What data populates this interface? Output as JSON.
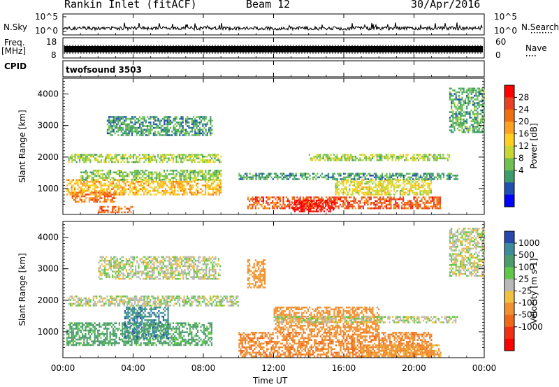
{
  "header": {
    "station": "Rankin Inlet (fitACF)",
    "beam": "Beam 12",
    "date": "30/Apr/2016"
  },
  "noise_panel": {
    "left_label": "N.Sky",
    "right_label": "N.Search",
    "left_ticks": [
      "10^5",
      "10^0"
    ],
    "right_ticks": [
      "10^5",
      "10^0"
    ]
  },
  "freq_panel": {
    "left_label_line1": "Freq.",
    "left_label_line2": "[MHz]",
    "right_label": "Nave",
    "left_ticks": [
      "18",
      "8"
    ],
    "right_ticks": [
      "60",
      "0"
    ]
  },
  "cpid_panel": {
    "label": "CPID",
    "value": "twofsound 3503"
  },
  "power_panel": {
    "ylabel": "Slant Range [km]",
    "yticks": [
      "4000",
      "3000",
      "2000",
      "1000"
    ],
    "colorbar_label": "Power [dB]",
    "colorbar_ticks": [
      "28",
      "24",
      "20",
      "16",
      "12",
      "8",
      "4"
    ],
    "colorbar_colors": [
      "#ff0000",
      "#e84020",
      "#f07010",
      "#ffa020",
      "#ffd020",
      "#c8d830",
      "#70c050",
      "#3c9c6c",
      "#2050b0",
      "#0000ff"
    ]
  },
  "velocity_panel": {
    "ylabel": "Slant Range [km]",
    "yticks": [
      "4000",
      "3000",
      "2000",
      "1000"
    ],
    "colorbar_label": "Velocity [m s-1]",
    "colorbar_ticks": [
      "1000",
      "500",
      "100",
      "25",
      "-25",
      "-100",
      "-500",
      "-1000"
    ],
    "colorbar_colors": [
      "#2848b0",
      "#3c8c9c",
      "#4c9c6c",
      "#60c848",
      "#b8b8b8",
      "#f0c040",
      "#f09030",
      "#f06818",
      "#f03010",
      "#ff0000"
    ]
  },
  "xaxis": {
    "label": "Time UT",
    "ticks": [
      "00:00",
      "04:00",
      "08:00",
      "12:00",
      "16:00",
      "20:00",
      "00:00"
    ]
  },
  "chart_data": [
    {
      "type": "heatmap",
      "title": "Power",
      "xlabel": "Time UT",
      "ylabel": "Slant Range [km]",
      "xlim": [
        0,
        24
      ],
      "ylim": [
        180,
        4500
      ],
      "clim": [
        0,
        30
      ],
      "units": "dB",
      "regions": [
        {
          "t": [
            0.2,
            9.0
          ],
          "r": [
            800,
            1300
          ],
          "value": 18
        },
        {
          "t": [
            0.5,
            3.0
          ],
          "r": [
            600,
            900
          ],
          "value": 22
        },
        {
          "t": [
            2.0,
            4.0
          ],
          "r": [
            250,
            450
          ],
          "value": 24
        },
        {
          "t": [
            1.0,
            9.0
          ],
          "r": [
            1300,
            1600
          ],
          "value": 11
        },
        {
          "t": [
            0.3,
            9.0
          ],
          "r": [
            1850,
            2100
          ],
          "value": 12
        },
        {
          "t": [
            10.5,
            21.5
          ],
          "r": [
            350,
            750
          ],
          "value": 24
        },
        {
          "t": [
            13.0,
            15.5
          ],
          "r": [
            250,
            650
          ],
          "value": 29
        },
        {
          "t": [
            15.5,
            21.0
          ],
          "r": [
            800,
            1300
          ],
          "value": 15
        },
        {
          "t": [
            10.0,
            22.5
          ],
          "r": [
            1300,
            1500
          ],
          "value": 8
        },
        {
          "t": [
            14.0,
            22.0
          ],
          "r": [
            1900,
            2100
          ],
          "value": 12
        },
        {
          "t": [
            2.5,
            8.5
          ],
          "r": [
            2700,
            3300
          ],
          "value": 8
        },
        {
          "t": [
            22.0,
            24.0
          ],
          "r": [
            2800,
            4200
          ],
          "value": 9
        }
      ]
    },
    {
      "type": "heatmap",
      "title": "Velocity",
      "xlabel": "Time UT",
      "ylabel": "Slant Range [km]",
      "xlim": [
        0,
        24
      ],
      "ylim": [
        180,
        4500
      ],
      "clim": [
        -1000,
        1000
      ],
      "units": "m s-1",
      "regions": [
        {
          "t": [
            0.2,
            8.5
          ],
          "r": [
            600,
            1300
          ],
          "value": 150
        },
        {
          "t": [
            3.5,
            6.0
          ],
          "r": [
            800,
            1800
          ],
          "value": 700
        },
        {
          "t": [
            0.3,
            10.0
          ],
          "r": [
            1850,
            2150
          ],
          "value": 0
        },
        {
          "t": [
            10.0,
            21.0
          ],
          "r": [
            250,
            1000
          ],
          "value": -400
        },
        {
          "t": [
            12.0,
            18.0
          ],
          "r": [
            1000,
            1800
          ],
          "value": -250
        },
        {
          "t": [
            17.0,
            21.5
          ],
          "r": [
            200,
            600
          ],
          "value": -150
        },
        {
          "t": [
            12.0,
            22.5
          ],
          "r": [
            1300,
            1500
          ],
          "value": 0
        },
        {
          "t": [
            2.0,
            9.0
          ],
          "r": [
            2700,
            3400
          ],
          "value": 0
        },
        {
          "t": [
            22.0,
            24.0
          ],
          "r": [
            2800,
            4300
          ],
          "value": 0
        },
        {
          "t": [
            10.5,
            11.5
          ],
          "r": [
            2400,
            3300
          ],
          "value": -200
        }
      ]
    }
  ]
}
